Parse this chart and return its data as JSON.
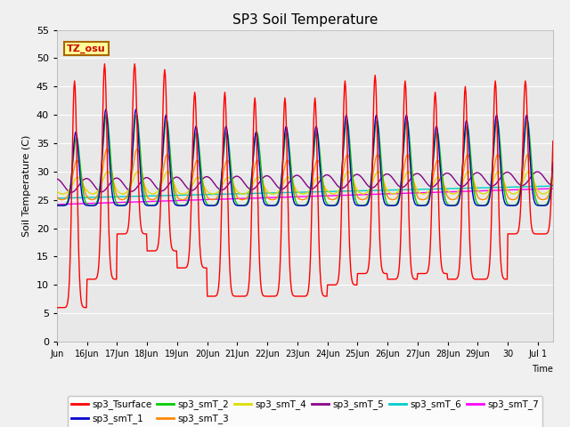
{
  "title": "SP3 Soil Temperature",
  "ylabel": "Soil Temperature (C)",
  "xlabel": "Time",
  "tz_label": "TZ_osu",
  "ylim": [
    0,
    55
  ],
  "yticks": [
    0,
    5,
    10,
    15,
    20,
    25,
    30,
    35,
    40,
    45,
    50,
    55
  ],
  "x_tick_labels": [
    "Jun",
    "16Jun",
    "17Jun",
    "18Jun",
    "19Jun",
    "20Jun",
    "21Jun",
    "22Jun",
    "23Jun",
    "24Jun",
    "25Jun",
    "26Jun",
    "27Jun",
    "28Jun",
    "29Jun",
    "30",
    "Jul 1"
  ],
  "x_tick_pos": [
    0,
    1,
    2,
    3,
    4,
    5,
    6,
    7,
    8,
    9,
    10,
    11,
    12,
    13,
    14,
    15,
    16
  ],
  "xlim": [
    0,
    16.5
  ],
  "series_colors": {
    "sp3_Tsurface": "#ff0000",
    "sp3_smT_1": "#0000cc",
    "sp3_smT_2": "#00cc00",
    "sp3_smT_3": "#ff8800",
    "sp3_smT_4": "#dddd00",
    "sp3_smT_5": "#880088",
    "sp3_smT_6": "#00cccc",
    "sp3_smT_7": "#ff00ff"
  },
  "background_color": "#e8e8e8",
  "grid_color": "#ffffff",
  "legend_bg": "#ffffff",
  "tz_box_color": "#ffff99",
  "tz_box_edge": "#aa6600",
  "fig_bg": "#f0f0f0"
}
